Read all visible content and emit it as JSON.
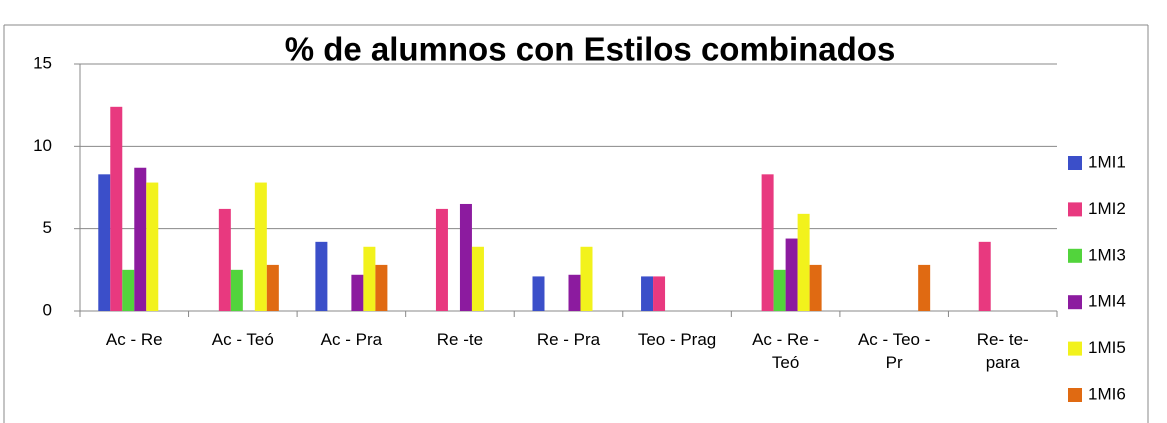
{
  "chart_data": {
    "type": "bar",
    "title": "% de alumnos con Estilos combinados",
    "categories": [
      "Ac - Re",
      "Ac - Teó",
      "Ac - Pra",
      "Re -te",
      "Re - Pra",
      "Teo - Prag",
      "Ac - Re - Teó",
      "Ac - Teo - Pr",
      "Re- te- para"
    ],
    "series": [
      {
        "name": "1MI1",
        "color": "#3b4fc9",
        "values": [
          8.3,
          0,
          4.2,
          0,
          2.1,
          2.1,
          0,
          0,
          0
        ]
      },
      {
        "name": "1MI2",
        "color": "#e8397f",
        "values": [
          12.4,
          6.2,
          0,
          6.2,
          0,
          2.1,
          8.3,
          0,
          4.2
        ]
      },
      {
        "name": "1MI3",
        "color": "#52d43c",
        "values": [
          2.5,
          2.5,
          0,
          0,
          0,
          0,
          2.5,
          0,
          0
        ]
      },
      {
        "name": "1MI4",
        "color": "#8c1b9f",
        "values": [
          8.7,
          0,
          2.2,
          6.5,
          2.2,
          0,
          4.4,
          0,
          0
        ]
      },
      {
        "name": "1MI5",
        "color": "#f2f21c",
        "values": [
          7.8,
          7.8,
          3.9,
          3.9,
          3.9,
          0,
          5.9,
          0,
          0
        ]
      },
      {
        "name": "1MI6",
        "color": "#e06a12",
        "values": [
          0,
          2.8,
          2.8,
          0,
          0,
          0,
          2.8,
          2.8,
          0
        ]
      }
    ],
    "ylim": [
      0,
      15
    ],
    "yticks": [
      0,
      5,
      10,
      15
    ],
    "grid": true,
    "legend": "right"
  }
}
